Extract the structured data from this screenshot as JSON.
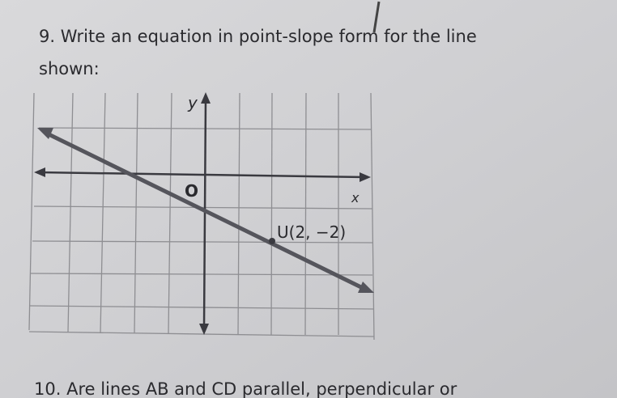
{
  "question_9": {
    "lines": [
      "9. Write an equation in point-slope form for the line",
      "shown:"
    ]
  },
  "graph": {
    "y_label": "y",
    "x_label": "x",
    "origin_label": "O",
    "point_label": "U(2, −2)"
  },
  "question_10": {
    "text": "10. Are lines AB and CD parallel, perpendicular or"
  }
}
